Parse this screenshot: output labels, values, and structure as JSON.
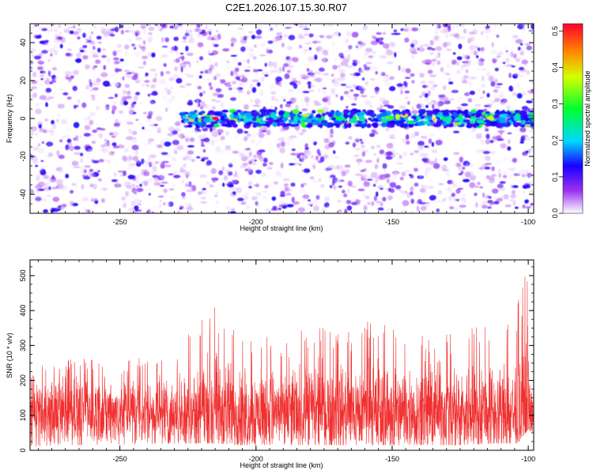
{
  "title": "C2E1.2026.107.15.30.R07",
  "chart_data": [
    {
      "type": "heatmap",
      "xlabel": "Height of straight line (km)",
      "ylabel": "Frequency (Hz)",
      "xlim": [
        -283,
        -98
      ],
      "ylim": [
        -50,
        50
      ],
      "x_ticks": [
        -250,
        -200,
        -150,
        -100
      ],
      "y_ticks": [
        -40,
        -20,
        0,
        20,
        40
      ],
      "x_tick_labels": [
        "-250",
        "-200",
        "-150",
        "-100"
      ],
      "y_tick_labels": [
        "-40",
        "-20",
        "0",
        "20",
        "40"
      ],
      "colorbar": {
        "label": "Normalized spectral amplitude",
        "range": [
          0,
          0.52
        ],
        "ticks": [
          0.0,
          0.1,
          0.2,
          0.3,
          0.4,
          0.5
        ],
        "tick_labels": [
          "0.0",
          "0.1",
          "0.2",
          "0.3",
          "0.4",
          "0.5"
        ],
        "colormap": [
          "#ffffff",
          "#7b00e6",
          "#0000ff",
          "#00e0ff",
          "#00ff40",
          "#d0ff00",
          "#ff8000",
          "#ff0000"
        ]
      },
      "features": [
        {
          "name_hint": "band",
          "freq_hz": 0,
          "x_start": -227,
          "x_end": -98,
          "peak_amplitude": 0.52,
          "peak_x": -215
        },
        {
          "name_hint": "background",
          "typical_amplitude": 0.08
        }
      ],
      "grid": false
    },
    {
      "type": "line",
      "xlabel": "Height of straight line (km)",
      "ylabel": "SNR (10 * v/v)",
      "xlim": [
        -283,
        -98
      ],
      "ylim": [
        0,
        545
      ],
      "x_ticks": [
        -250,
        -200,
        -150,
        -100
      ],
      "y_ticks": [
        0,
        100,
        200,
        300,
        400,
        500
      ],
      "x_tick_labels": [
        "-250",
        "-200",
        "-150",
        "-100"
      ],
      "y_tick_labels": [
        "0",
        "100",
        "200",
        "300",
        "400",
        "500"
      ],
      "color": "#f03030",
      "series": [
        {
          "x_start": -283,
          "x_end": -98,
          "envelope": [
            {
              "x": -283,
              "max": 230,
              "min": 10
            },
            {
              "x": -270,
              "max": 270,
              "min": 15
            },
            {
              "x": -250,
              "max": 260,
              "min": 15
            },
            {
              "x": -230,
              "max": 280,
              "min": 20
            },
            {
              "x": -222,
              "max": 360,
              "min": 20
            },
            {
              "x": -215,
              "max": 420,
              "min": 20
            },
            {
              "x": -205,
              "max": 320,
              "min": 15
            },
            {
              "x": -190,
              "max": 330,
              "min": 15
            },
            {
              "x": -175,
              "max": 360,
              "min": 15
            },
            {
              "x": -165,
              "max": 340,
              "min": 15
            },
            {
              "x": -155,
              "max": 390,
              "min": 15
            },
            {
              "x": -140,
              "max": 330,
              "min": 15
            },
            {
              "x": -125,
              "max": 350,
              "min": 15
            },
            {
              "x": -112,
              "max": 360,
              "min": 20
            },
            {
              "x": -104,
              "max": 420,
              "min": 20
            },
            {
              "x": -100,
              "max": 545,
              "min": 60
            },
            {
              "x": -98,
              "max": 300,
              "min": 50
            }
          ],
          "typical_center": 110
        }
      ],
      "grid": false
    }
  ]
}
